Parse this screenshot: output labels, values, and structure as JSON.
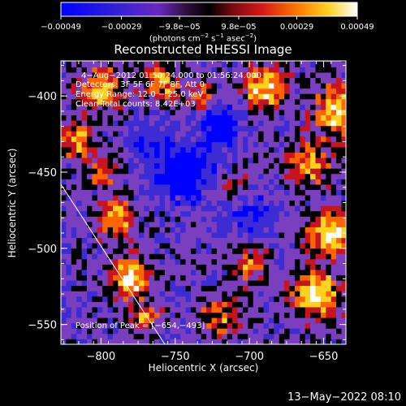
{
  "colorbar": {
    "tick_labels": [
      "−0.00049",
      "−0.00029",
      "−9.8e−05",
      "9.8e−05",
      "0.00029",
      "0.00049"
    ],
    "tick_values": [
      -0.00049,
      -0.00029,
      -9.8e-05,
      9.8e-05,
      0.00029,
      0.00049
    ],
    "range": [
      -0.00049,
      0.00049
    ],
    "units_prefix": "(photons cm",
    "units_exp1": "−2",
    "units_mid": " s",
    "units_exp2": "−1",
    "units_suffix": " asec",
    "units_exp3": "−2",
    "units_close": ")"
  },
  "chart_data": {
    "type": "heatmap",
    "title": "Reconstructed RHESSI Image",
    "xlabel": "Heliocentric X (arcsec)",
    "ylabel": "Heliocentric Y (arcsec)",
    "xlim": [
      -827,
      -635
    ],
    "ylim": [
      -563,
      -377
    ],
    "x_ticks": [
      -800,
      -750,
      -700,
      -650
    ],
    "x_tick_labels": [
      "−800",
      "−750",
      "−700",
      "−650"
    ],
    "y_ticks": [
      -550,
      -500,
      -450,
      -400
    ],
    "y_tick_labels": [
      "−550",
      "−500",
      "−450",
      "−400"
    ],
    "annotations": {
      "time_range": "4−Aug−2012 01:50:24.000 to 01:56:24.000",
      "detectors": "Detectors: 3F 5F 6F 7F 8F, Att 0",
      "energy_range": "Energy Range: 12.0 − 25.0 keV",
      "clean_line": "Clean    Total counts: 8.42E+03",
      "peak_position": "Position of Peak = [−654,−493]"
    },
    "limb_line": {
      "x": [
        -827,
        -757
      ],
      "y": [
        -458,
        -563
      ]
    },
    "grid": false,
    "colormap": [
      "#0000ff",
      "#3d2bd4",
      "#7a3fbf",
      "#000000",
      "#c8141e",
      "#ff6400",
      "#ffd21e",
      "#ffffff"
    ]
  },
  "footer": {
    "timestamp": "13−May−2022 08:10"
  }
}
